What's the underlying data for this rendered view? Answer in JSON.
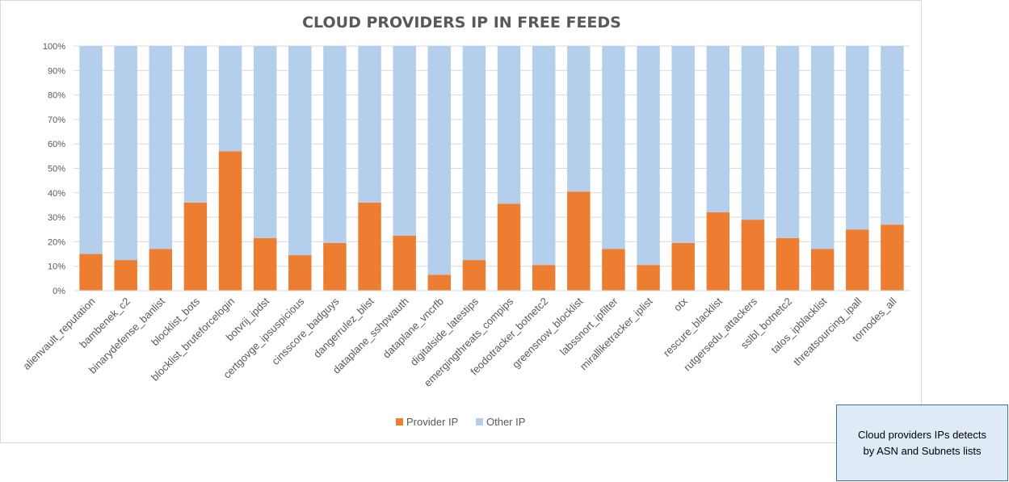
{
  "chart_data": {
    "type": "bar",
    "stacked": true,
    "percent_stacked": true,
    "title": "CLOUD PROVIDERS IP IN FREE FEEDS",
    "ylim": [
      0,
      100
    ],
    "yticks": [
      "0%",
      "10%",
      "20%",
      "30%",
      "40%",
      "50%",
      "60%",
      "70%",
      "80%",
      "90%",
      "100%"
    ],
    "grid": true,
    "legend_position": "bottom",
    "categories": [
      "alienvault_reputation",
      "bambenek_c2",
      "binarydefense_banlist",
      "blocklist_bots",
      "blocklist_bruteforcelogin",
      "botvrij_ipdst",
      "certgovge_ipsuspicious",
      "cinsscore_badguys",
      "dangerrulez_blist",
      "dataplane_sshpwauth",
      "dataplane_vncrfb",
      "digitalside_latestips",
      "emergingthreats_compips",
      "feodotracker_botnetc2",
      "greensnow_blocklist",
      "labssnort_ipfilter",
      "miralliketracker_iplist",
      "otx",
      "rescure_blacklist",
      "rutgersedu_attackers",
      "sslbl_botnetc2",
      "talos_ipblacklist",
      "threatsourcing_ipall",
      "tornodes_all"
    ],
    "series": [
      {
        "name": "Provider IP",
        "color": "#ed7d31",
        "values": [
          15,
          12.5,
          17,
          36,
          57,
          21.5,
          14.5,
          19.5,
          36,
          22.5,
          6.5,
          12.5,
          35.5,
          10.5,
          40.5,
          17,
          10.5,
          19.5,
          32,
          29,
          21.5,
          17,
          25,
          27
        ]
      },
      {
        "name": "Other IP",
        "color": "#b4cfeb",
        "values": [
          85,
          87.5,
          83,
          64,
          43,
          78.5,
          85.5,
          80.5,
          64,
          77.5,
          93.5,
          87.5,
          64.5,
          89.5,
          59.5,
          83,
          89.5,
          80.5,
          68,
          71,
          78.5,
          83,
          75,
          73
        ]
      }
    ]
  },
  "note": {
    "line1": "Cloud providers IPs detects",
    "line2": "by ASN and Subnets lists"
  },
  "colors": {
    "title": "#595959",
    "axis_text": "#595959",
    "gridline": "#d9d9d9",
    "note_border": "#41719c",
    "note_fill": "#deebf7"
  }
}
